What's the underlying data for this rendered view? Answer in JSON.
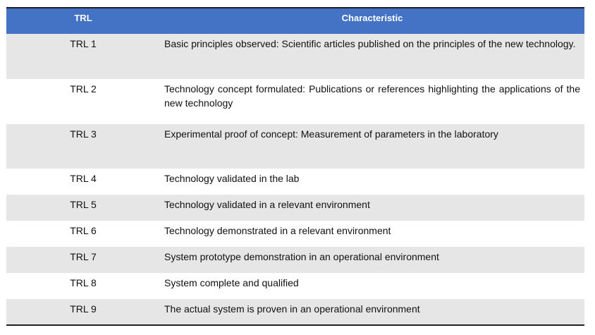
{
  "table": {
    "headers": [
      "TRL",
      "Characteristic"
    ],
    "rows": [
      {
        "trl": "TRL 1",
        "characteristic": "Basic principles observed: Scientific articles published on the principles of the new technology."
      },
      {
        "trl": "TRL 2",
        "characteristic": "Technology concept formulated: Publications or references highlighting the applications of the new technology"
      },
      {
        "trl": "TRL 3",
        "characteristic": "Experimental proof of concept: Measurement of parameters in the laboratory"
      },
      {
        "trl": "TRL 4",
        "characteristic": "Technology validated in the lab"
      },
      {
        "trl": "TRL 5",
        "characteristic": "Technology validated in a relevant environment"
      },
      {
        "trl": "TRL 6",
        "characteristic": "Technology demonstrated in a relevant environment"
      },
      {
        "trl": "TRL 7",
        "characteristic": "System prototype demonstration in an operational environment"
      },
      {
        "trl": "TRL 8",
        "characteristic": "System complete and qualified"
      },
      {
        "trl": "TRL 9",
        "characteristic": "The actual system is proven in an operational environment"
      }
    ]
  },
  "colors": {
    "header_background": "#4472c4",
    "header_text": "#ffffff",
    "shaded_row": "#e7e6e6"
  }
}
